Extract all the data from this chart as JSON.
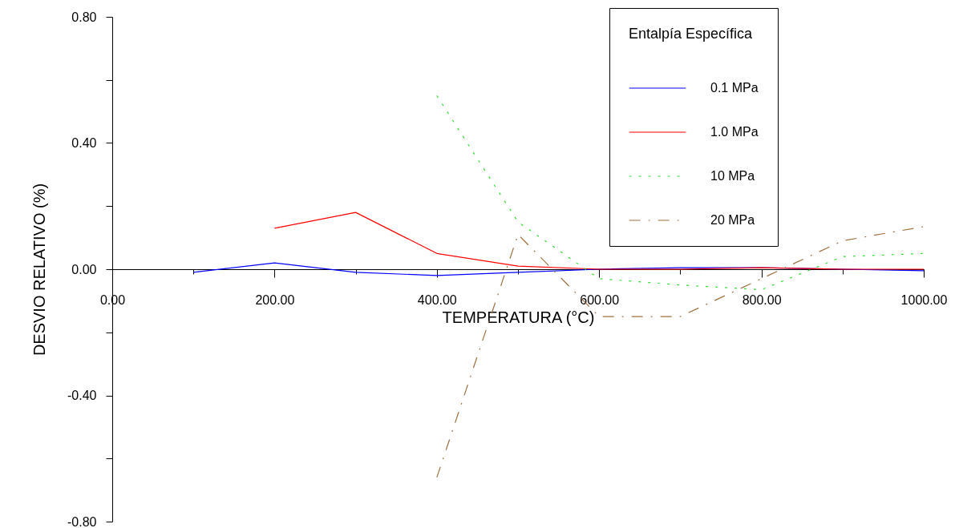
{
  "chart_data": {
    "type": "line",
    "xlabel": "TEMPERATURA (°C)",
    "ylabel": "DESVIO RELATIVO (%)",
    "legend_title": "Entalpía Específica",
    "legend": "top right",
    "grid": false,
    "x": [
      100,
      200,
      300,
      400,
      500,
      600,
      700,
      800,
      900,
      1000
    ],
    "xlim": [
      0,
      1000
    ],
    "xticks": [
      {
        "value": 0,
        "label": "0.00"
      },
      {
        "value": 100,
        "label": null
      },
      {
        "value": 200,
        "label": "200.00"
      },
      {
        "value": 300,
        "label": null
      },
      {
        "value": 400,
        "label": "400.00"
      },
      {
        "value": 500,
        "label": null
      },
      {
        "value": 600,
        "label": "600.00"
      },
      {
        "value": 700,
        "label": null
      },
      {
        "value": 800,
        "label": "800.00"
      },
      {
        "value": 900,
        "label": null
      },
      {
        "value": 1000,
        "label": "1000.00"
      }
    ],
    "ylim": [
      -0.8,
      0.8
    ],
    "yticks": [
      {
        "value": -0.8,
        "label": "-0.80"
      },
      {
        "value": -0.6,
        "label": null
      },
      {
        "value": -0.4,
        "label": "-0.40"
      },
      {
        "value": -0.2,
        "label": null
      },
      {
        "value": 0,
        "label": "0.00"
      },
      {
        "value": 0.2,
        "label": null
      },
      {
        "value": 0.4,
        "label": "0.40"
      },
      {
        "value": 0.6,
        "label": null
      },
      {
        "value": 0.8,
        "label": "0.80"
      }
    ],
    "series": [
      {
        "name": "0.1 MPa",
        "color": "#0000ff",
        "line_style": "solid",
        "values": [
          -0.01,
          0.02,
          -0.01,
          -0.02,
          -0.01,
          0,
          0.005,
          0.005,
          0,
          -0.005
        ]
      },
      {
        "name": "1.0 MPa",
        "color": "#ff0000",
        "line_style": "solid",
        "values": [
          null,
          0.13,
          0.18,
          0.05,
          0.01,
          0,
          0,
          0.005,
          0,
          0
        ]
      },
      {
        "name": "10 MPa",
        "color": "#33dd33",
        "line_style": "dotted",
        "values": [
          null,
          null,
          null,
          0.55,
          0.15,
          -0.03,
          -0.05,
          -0.065,
          0.04,
          0.05
        ]
      },
      {
        "name": "20 MPa",
        "color": "#a07040",
        "line_style": "dashed",
        "values": [
          null,
          null,
          null,
          -0.66,
          0.11,
          -0.15,
          -0.15,
          -0.03,
          0.09,
          0.135
        ]
      }
    ]
  }
}
